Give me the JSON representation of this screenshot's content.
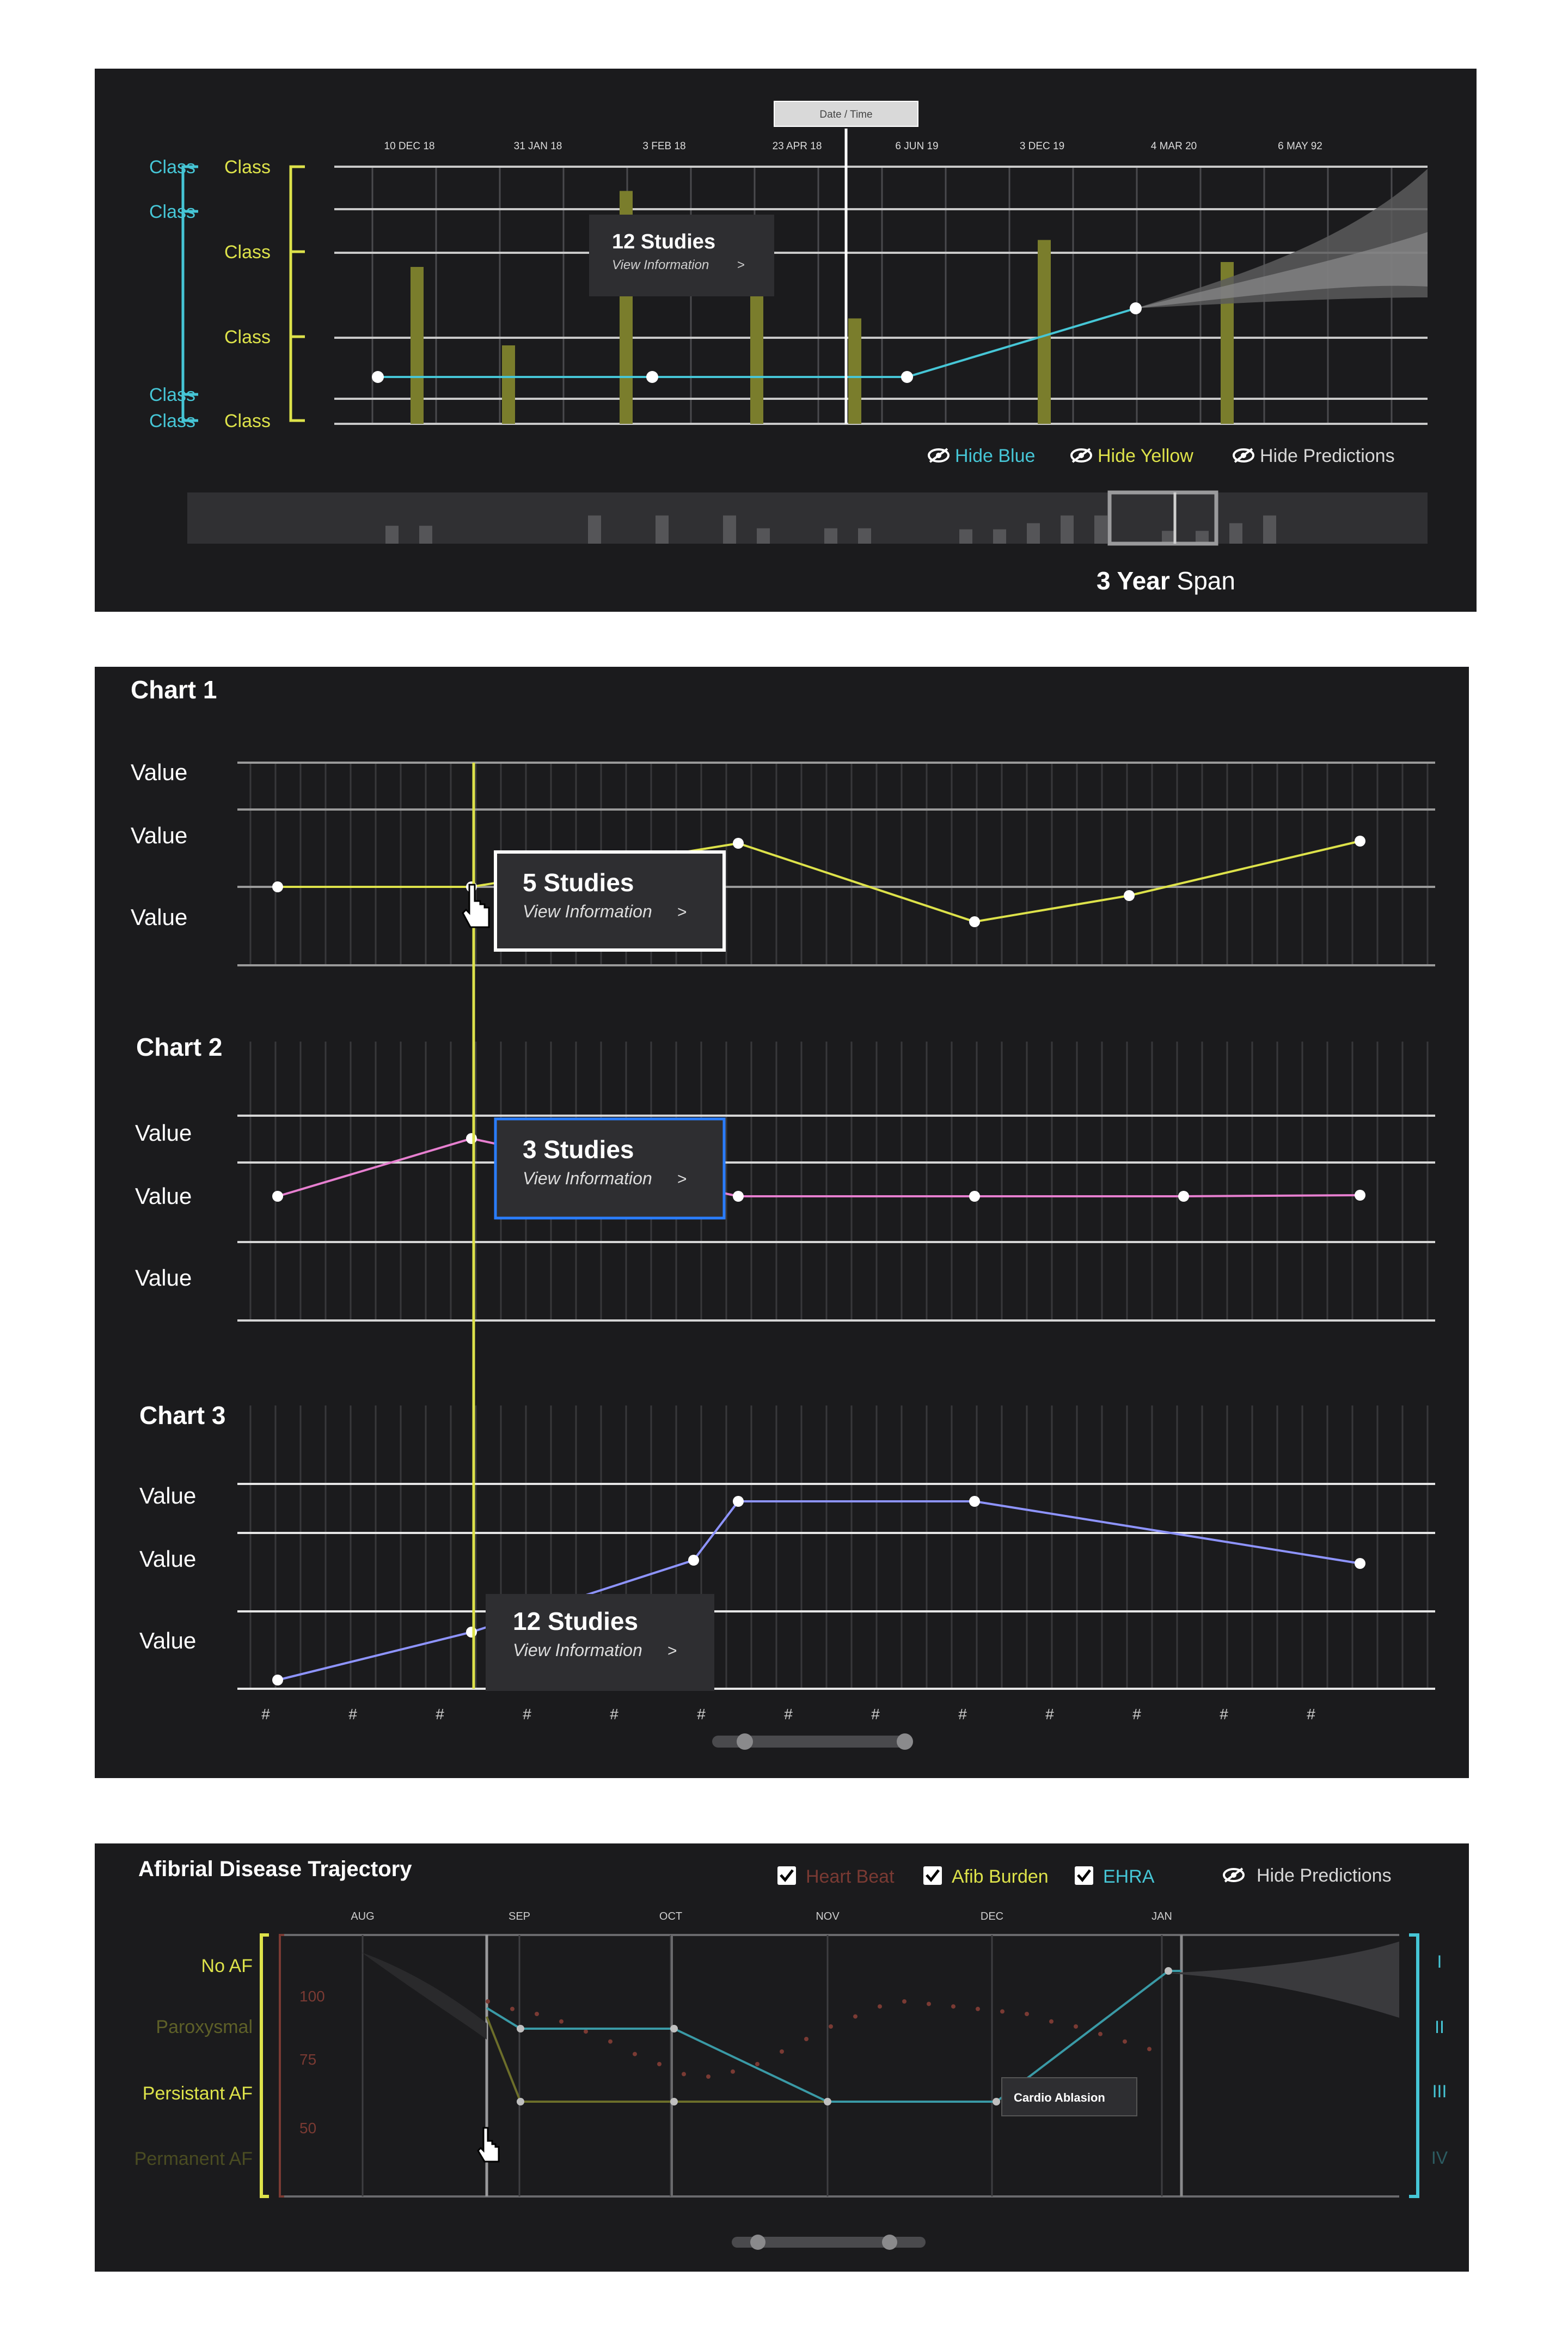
{
  "colors": {
    "panel_bg": "#1b1b1d",
    "blue": "#46c6d6",
    "yellow": "#dde24a",
    "olive_bar": "#7a7d2c",
    "grid": "#3a3a3d",
    "line": "#c9c9c9",
    "purple": "#8e94ff",
    "pink": "#e77fd0",
    "red_dim": "#7a3a33",
    "highlight_blue": "#2a7dff"
  },
  "panel1": {
    "time_slider_label": "Date / Time",
    "left_blue_labels": [
      "Class",
      "Class",
      "Class",
      "Class"
    ],
    "left_yellow_labels": [
      "Class",
      "Class",
      "Class",
      "Class"
    ],
    "tooltip": {
      "title": "12 Studies",
      "link": "View Information",
      "arrow": ">"
    },
    "toggles": [
      {
        "label": "Hide Blue",
        "icon": "eye-off-icon"
      },
      {
        "label": "Hide Yellow",
        "icon": "eye-off-icon"
      },
      {
        "label": "Hide Predictions",
        "icon": "eye-off-icon"
      }
    ],
    "span_bold": "3 Year",
    "span_rest": " Span"
  },
  "panel2": {
    "charts": [
      {
        "title": "Chart 1",
        "labels": [
          "Value",
          "Value",
          "Value"
        ],
        "tooltip": {
          "title": "5 Studies",
          "link": "View Information",
          "arrow": ">"
        }
      },
      {
        "title": "Chart 2",
        "labels": [
          "Value",
          "Value",
          "Value"
        ],
        "tooltip": {
          "title": "3 Studies",
          "link": "View Information",
          "arrow": ">"
        }
      },
      {
        "title": "Chart 3",
        "labels": [
          "Value",
          "Value",
          "Value"
        ],
        "tooltip": {
          "title": "12 Studies",
          "link": "View Information",
          "arrow": ">"
        }
      }
    ],
    "cursor_icon": "hand-pointer-icon"
  },
  "panel3": {
    "title": "Afibrial Disease Trajectory",
    "legend": [
      {
        "label": "Heart Beat",
        "checked": true,
        "icon": "checkbox-icon"
      },
      {
        "label": "Afib Burden",
        "checked": true,
        "icon": "checkbox-icon"
      },
      {
        "label": "EHRA",
        "checked": true,
        "icon": "checkbox-icon"
      }
    ],
    "hide_predictions": "Hide Predictions",
    "left_labels": [
      "No AF",
      "Paroxysmal",
      "Persistant AF",
      "Permanent AF"
    ],
    "right_labels": [
      "I",
      "II",
      "III",
      "IV"
    ],
    "annotation": "Cardio Ablasion",
    "cursor_icon": "hand-pointer-icon"
  },
  "chart_data": [
    {
      "type": "bar",
      "x_tick_labels": [
        "10 DEC 18",
        "31 JAN 18",
        "3 FEB 18",
        "23 APR 18",
        "6 JUN 19",
        "3 DEC 19",
        "4 MAR 20",
        "6 MAY 92"
      ],
      "bars": [
        {
          "slot": 0.3,
          "value": 0.64
        },
        {
          "slot": 1.0,
          "value": 0.32
        },
        {
          "slot": 1.9,
          "value": 0.95
        },
        {
          "slot": 2.9,
          "value": 0.52
        },
        {
          "slot": 3.65,
          "value": 0.43
        },
        {
          "slot": 5.1,
          "value": 0.75
        },
        {
          "slot": 6.5,
          "value": 0.66
        }
      ],
      "blue_line": [
        {
          "slot": 0.3,
          "value": 0.19
        },
        {
          "slot": 2.4,
          "value": 0.19
        },
        {
          "slot": 4.3,
          "value": 0.19
        },
        {
          "slot": 6.0,
          "value": 0.46
        }
      ],
      "prediction_cone": true,
      "minimap_bars": [
        0.35,
        0.35,
        0,
        0,
        0,
        0,
        0.55,
        0,
        0.55,
        0,
        0.55,
        0.3,
        0,
        0.3,
        0.3,
        0,
        0,
        0.28,
        0.28,
        0.4,
        0.55,
        0.55,
        0,
        0.25,
        0.25,
        0.4,
        0.55
      ]
    },
    {
      "type": "line",
      "title": "Chart 1",
      "x": [
        0,
        1,
        2,
        3,
        4,
        5
      ],
      "values": [
        2.0,
        2.0,
        3.0,
        1.55,
        1.8,
        2.55
      ],
      "point_x": [
        0.48,
        2.9,
        5.8,
        8.5,
        10.0,
        13.0
      ],
      "color": "yellow"
    },
    {
      "type": "line",
      "title": "Chart 2",
      "values": [
        2.2,
        2.85,
        2.2,
        2.2,
        2.2,
        2.2
      ],
      "point_x": [
        0.48,
        2.7,
        5.8,
        8.5,
        10.0,
        13.0
      ],
      "color": "pink"
    },
    {
      "type": "line",
      "title": "Chart 3",
      "x_tick_labels": [
        "#",
        "#",
        "#",
        "#",
        "#",
        "#",
        "#",
        "#",
        "#",
        "#",
        "#",
        "#",
        "#"
      ],
      "values": [
        0.25,
        1.0,
        1.8,
        3.05,
        3.05,
        2.2
      ],
      "point_x": [
        0.48,
        2.7,
        4.0,
        5.8,
        8.5,
        13.0
      ],
      "color": "purple"
    },
    {
      "type": "line",
      "title": "Afibrial Disease Trajectory",
      "x_tick_labels": [
        "AUG",
        "SEP",
        "OCT",
        "NOV",
        "DEC",
        "JAN"
      ],
      "series": [
        {
          "name": "Heart Beat",
          "values": [
            100,
            97,
            95,
            92,
            88,
            84,
            79,
            75,
            71,
            70,
            72,
            75,
            80,
            85,
            90,
            94,
            98,
            100,
            99,
            98,
            97,
            96,
            95,
            92,
            90,
            87,
            84,
            81
          ]
        },
        {
          "name": "Afib Burden",
          "level": "Persistant AF",
          "values": [
            2.0,
            2.0,
            2.0,
            2.0,
            2.0
          ]
        },
        {
          "name": "EHRA",
          "values": [
            "II",
            "II",
            "III",
            "III",
            "I"
          ]
        }
      ],
      "ylim_left": [
        40,
        110
      ],
      "left_tick_labels": [
        "100",
        "75",
        "50"
      ]
    }
  ]
}
